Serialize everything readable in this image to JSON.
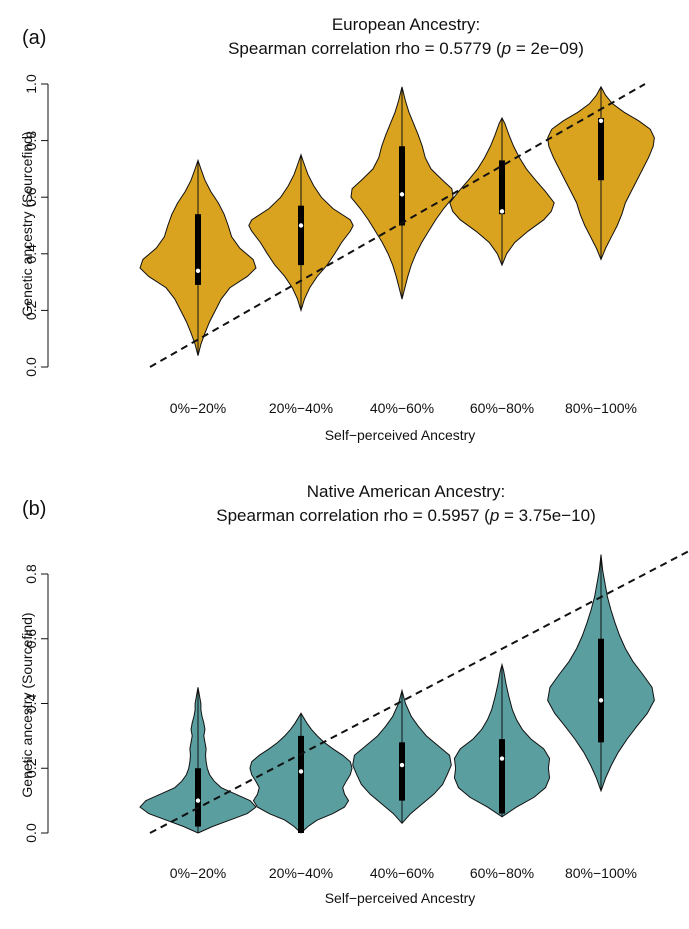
{
  "figure": {
    "panels": [
      {
        "label": "(a)",
        "title_line1": "European Ancestry:",
        "title_line2_prefix": "Spearman correlation rho = 0.5779 (",
        "title_p_symbol": "p",
        "title_p_value": " = 2e−09)",
        "fill_color": "#D9A21F"
      },
      {
        "label": "(b)",
        "title_line1": "Native American Ancestry:",
        "title_line2_prefix": "Spearman correlation rho = 0.5957 (",
        "title_p_symbol": "p",
        "title_p_value": " = 3.75e−10)",
        "fill_color": "#5A9EA0"
      }
    ]
  },
  "chart_data": [
    {
      "type": "violin",
      "title": "European Ancestry: Spearman correlation rho = 0.5779 (p = 2e−09)",
      "xlabel": "Self−perceived Ancestry",
      "ylabel": "Genetic ancestry (Sourcefind)",
      "categories": [
        "0%−20%",
        "20%−40%",
        "40%−60%",
        "60%−80%",
        "80%−100%"
      ],
      "ylim": [
        0,
        1.0
      ],
      "yticks": [
        "0.0",
        "0.2",
        "0.4",
        "0.6",
        "0.8",
        "1.0"
      ],
      "reference_line": {
        "style": "dashed",
        "from": [
          0,
          0
        ],
        "to": [
          1.0,
          1.0
        ]
      },
      "violins": [
        {
          "category": "0%−20%",
          "min": 0.04,
          "max": 0.73,
          "q1": 0.29,
          "median": 0.34,
          "q3": 0.54,
          "density": [
            [
              0.04,
              0.0
            ],
            [
              0.08,
              0.05
            ],
            [
              0.12,
              0.12
            ],
            [
              0.16,
              0.2
            ],
            [
              0.2,
              0.3
            ],
            [
              0.24,
              0.4
            ],
            [
              0.28,
              0.55
            ],
            [
              0.32,
              0.85
            ],
            [
              0.35,
              1.0
            ],
            [
              0.38,
              0.95
            ],
            [
              0.42,
              0.72
            ],
            [
              0.46,
              0.58
            ],
            [
              0.5,
              0.52
            ],
            [
              0.54,
              0.45
            ],
            [
              0.58,
              0.35
            ],
            [
              0.62,
              0.22
            ],
            [
              0.66,
              0.12
            ],
            [
              0.7,
              0.05
            ],
            [
              0.73,
              0.0
            ]
          ]
        },
        {
          "category": "20%−40%",
          "min": 0.2,
          "max": 0.75,
          "q1": 0.36,
          "median": 0.5,
          "q3": 0.57,
          "density": [
            [
              0.2,
              0.0
            ],
            [
              0.24,
              0.06
            ],
            [
              0.28,
              0.15
            ],
            [
              0.32,
              0.28
            ],
            [
              0.36,
              0.45
            ],
            [
              0.4,
              0.58
            ],
            [
              0.44,
              0.7
            ],
            [
              0.48,
              0.85
            ],
            [
              0.5,
              0.9
            ],
            [
              0.52,
              0.85
            ],
            [
              0.56,
              0.55
            ],
            [
              0.6,
              0.35
            ],
            [
              0.64,
              0.22
            ],
            [
              0.68,
              0.12
            ],
            [
              0.72,
              0.05
            ],
            [
              0.75,
              0.0
            ]
          ]
        },
        {
          "category": "40%−60%",
          "min": 0.24,
          "max": 0.99,
          "q1": 0.5,
          "median": 0.61,
          "q3": 0.78,
          "density": [
            [
              0.24,
              0.0
            ],
            [
              0.28,
              0.05
            ],
            [
              0.32,
              0.1
            ],
            [
              0.36,
              0.16
            ],
            [
              0.4,
              0.24
            ],
            [
              0.44,
              0.34
            ],
            [
              0.48,
              0.46
            ],
            [
              0.52,
              0.58
            ],
            [
              0.56,
              0.72
            ],
            [
              0.6,
              0.88
            ],
            [
              0.63,
              0.86
            ],
            [
              0.66,
              0.7
            ],
            [
              0.7,
              0.5
            ],
            [
              0.74,
              0.4
            ],
            [
              0.78,
              0.35
            ],
            [
              0.82,
              0.28
            ],
            [
              0.86,
              0.2
            ],
            [
              0.9,
              0.12
            ],
            [
              0.94,
              0.06
            ],
            [
              0.99,
              0.0
            ]
          ]
        },
        {
          "category": "60%−80%",
          "min": 0.36,
          "max": 0.88,
          "q1": 0.54,
          "median": 0.55,
          "q3": 0.73,
          "density": [
            [
              0.36,
              0.0
            ],
            [
              0.4,
              0.08
            ],
            [
              0.44,
              0.22
            ],
            [
              0.48,
              0.45
            ],
            [
              0.52,
              0.72
            ],
            [
              0.55,
              0.85
            ],
            [
              0.58,
              0.9
            ],
            [
              0.62,
              0.75
            ],
            [
              0.66,
              0.58
            ],
            [
              0.7,
              0.42
            ],
            [
              0.74,
              0.3
            ],
            [
              0.78,
              0.2
            ],
            [
              0.82,
              0.12
            ],
            [
              0.86,
              0.05
            ],
            [
              0.88,
              0.0
            ]
          ]
        },
        {
          "category": "80%−100%",
          "min": 0.38,
          "max": 0.99,
          "q1": 0.66,
          "median": 0.87,
          "q3": 0.88,
          "density": [
            [
              0.38,
              0.0
            ],
            [
              0.42,
              0.08
            ],
            [
              0.46,
              0.18
            ],
            [
              0.5,
              0.28
            ],
            [
              0.54,
              0.36
            ],
            [
              0.58,
              0.42
            ],
            [
              0.62,
              0.52
            ],
            [
              0.66,
              0.62
            ],
            [
              0.7,
              0.72
            ],
            [
              0.74,
              0.82
            ],
            [
              0.78,
              0.9
            ],
            [
              0.81,
              0.92
            ],
            [
              0.84,
              0.85
            ],
            [
              0.87,
              0.65
            ],
            [
              0.9,
              0.4
            ],
            [
              0.93,
              0.2
            ],
            [
              0.96,
              0.08
            ],
            [
              0.99,
              0.0
            ]
          ]
        }
      ]
    },
    {
      "type": "violin",
      "title": "Native American Ancestry: Spearman correlation rho = 0.5957 (p = 3.75e−10)",
      "xlabel": "Self−perceived Ancestry",
      "ylabel": "Genetic ancestry (Sourcefind)",
      "categories": [
        "0%−20%",
        "20%−40%",
        "40%−60%",
        "60%−80%",
        "80%−100%"
      ],
      "ylim": [
        0,
        0.8
      ],
      "yticks": [
        "0.0",
        "0.2",
        "0.4",
        "0.6",
        "0.8"
      ],
      "reference_line": {
        "style": "dashed",
        "from": [
          0,
          0
        ],
        "to": [
          0.9,
          0.9
        ]
      },
      "violins": [
        {
          "category": "0%−20%",
          "min": 0.0,
          "max": 0.45,
          "q1": 0.02,
          "median": 0.1,
          "q3": 0.2,
          "density": [
            [
              0.0,
              0.0
            ],
            [
              0.02,
              0.25
            ],
            [
              0.04,
              0.55
            ],
            [
              0.06,
              0.85
            ],
            [
              0.08,
              1.0
            ],
            [
              0.1,
              0.9
            ],
            [
              0.12,
              0.65
            ],
            [
              0.14,
              0.4
            ],
            [
              0.16,
              0.28
            ],
            [
              0.18,
              0.2
            ],
            [
              0.2,
              0.16
            ],
            [
              0.22,
              0.14
            ],
            [
              0.24,
              0.13
            ],
            [
              0.26,
              0.14
            ],
            [
              0.28,
              0.12
            ],
            [
              0.3,
              0.1
            ],
            [
              0.32,
              0.12
            ],
            [
              0.34,
              0.1
            ],
            [
              0.36,
              0.07
            ],
            [
              0.38,
              0.05
            ],
            [
              0.4,
              0.05
            ],
            [
              0.42,
              0.03
            ],
            [
              0.45,
              0.0
            ]
          ]
        },
        {
          "category": "20%−40%",
          "min": 0.0,
          "max": 0.37,
          "q1": 0.0,
          "median": 0.19,
          "q3": 0.3,
          "density": [
            [
              0.0,
              0.0
            ],
            [
              0.02,
              0.12
            ],
            [
              0.04,
              0.28
            ],
            [
              0.06,
              0.55
            ],
            [
              0.08,
              0.75
            ],
            [
              0.1,
              0.82
            ],
            [
              0.12,
              0.75
            ],
            [
              0.14,
              0.72
            ],
            [
              0.16,
              0.78
            ],
            [
              0.18,
              0.85
            ],
            [
              0.2,
              0.88
            ],
            [
              0.22,
              0.85
            ],
            [
              0.24,
              0.72
            ],
            [
              0.26,
              0.55
            ],
            [
              0.28,
              0.4
            ],
            [
              0.3,
              0.28
            ],
            [
              0.32,
              0.18
            ],
            [
              0.34,
              0.1
            ],
            [
              0.37,
              0.0
            ]
          ]
        },
        {
          "category": "40%−60%",
          "min": 0.03,
          "max": 0.44,
          "q1": 0.1,
          "median": 0.21,
          "q3": 0.28,
          "density": [
            [
              0.03,
              0.0
            ],
            [
              0.06,
              0.15
            ],
            [
              0.09,
              0.35
            ],
            [
              0.12,
              0.55
            ],
            [
              0.15,
              0.7
            ],
            [
              0.18,
              0.78
            ],
            [
              0.21,
              0.85
            ],
            [
              0.24,
              0.82
            ],
            [
              0.27,
              0.62
            ],
            [
              0.3,
              0.42
            ],
            [
              0.33,
              0.28
            ],
            [
              0.36,
              0.16
            ],
            [
              0.4,
              0.06
            ],
            [
              0.44,
              0.0
            ]
          ]
        },
        {
          "category": "60%−80%",
          "min": 0.05,
          "max": 0.52,
          "q1": 0.06,
          "median": 0.23,
          "q3": 0.29,
          "density": [
            [
              0.05,
              0.0
            ],
            [
              0.08,
              0.25
            ],
            [
              0.11,
              0.55
            ],
            [
              0.14,
              0.75
            ],
            [
              0.17,
              0.82
            ],
            [
              0.2,
              0.8
            ],
            [
              0.23,
              0.82
            ],
            [
              0.26,
              0.72
            ],
            [
              0.29,
              0.5
            ],
            [
              0.32,
              0.35
            ],
            [
              0.35,
              0.25
            ],
            [
              0.38,
              0.18
            ],
            [
              0.42,
              0.12
            ],
            [
              0.46,
              0.07
            ],
            [
              0.5,
              0.03
            ],
            [
              0.52,
              0.0
            ]
          ]
        },
        {
          "category": "80%−100%",
          "min": 0.13,
          "max": 0.86,
          "q1": 0.28,
          "median": 0.41,
          "q3": 0.6,
          "density": [
            [
              0.13,
              0.0
            ],
            [
              0.17,
              0.08
            ],
            [
              0.21,
              0.18
            ],
            [
              0.25,
              0.3
            ],
            [
              0.29,
              0.45
            ],
            [
              0.33,
              0.62
            ],
            [
              0.37,
              0.8
            ],
            [
              0.41,
              0.92
            ],
            [
              0.45,
              0.88
            ],
            [
              0.49,
              0.72
            ],
            [
              0.53,
              0.55
            ],
            [
              0.57,
              0.42
            ],
            [
              0.61,
              0.32
            ],
            [
              0.65,
              0.24
            ],
            [
              0.69,
              0.17
            ],
            [
              0.73,
              0.11
            ],
            [
              0.77,
              0.07
            ],
            [
              0.81,
              0.03
            ],
            [
              0.86,
              0.0
            ]
          ]
        }
      ]
    }
  ]
}
